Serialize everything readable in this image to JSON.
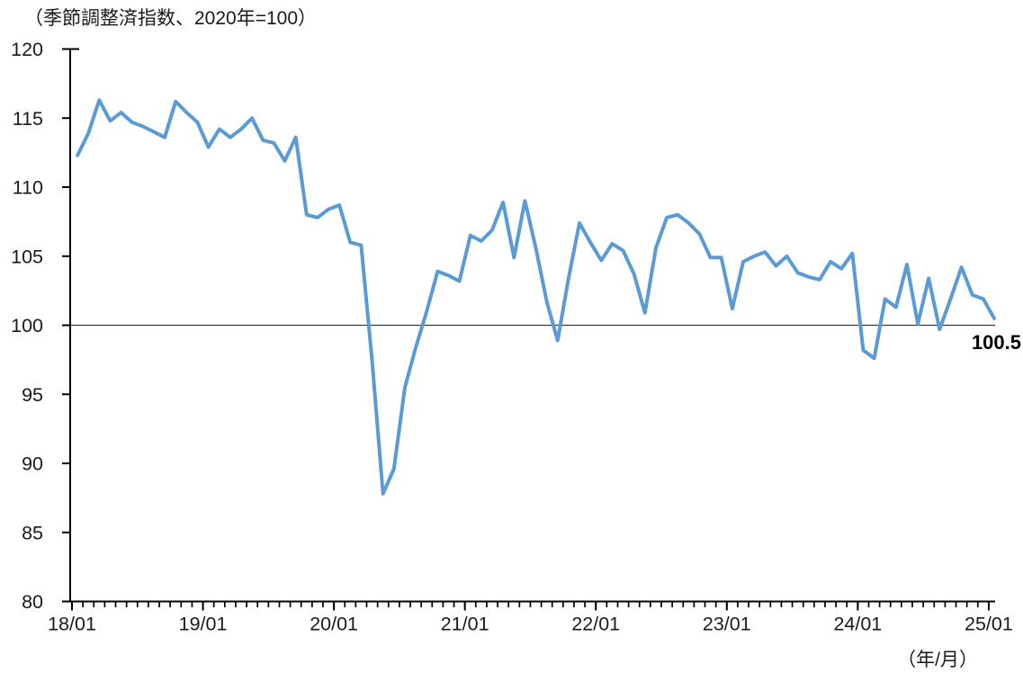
{
  "chart_data": {
    "type": "line",
    "title": "（季節調整済指数、2020年=100）",
    "x_axis_note": "（年/月）",
    "last_value_label": "100.5",
    "last_value": 100.5,
    "line_color": "#5B9BD5",
    "axis_color": "#000000",
    "reference_line_value": 100,
    "ylim": [
      80,
      120
    ],
    "y_ticks": [
      80,
      85,
      90,
      95,
      100,
      105,
      110,
      115,
      120
    ],
    "x_major_tick_labels": [
      "18/01",
      "19/01",
      "20/01",
      "21/01",
      "22/01",
      "23/01",
      "24/01",
      "25/01"
    ],
    "legend": "none",
    "grid": "off",
    "x": [
      "18/01",
      "18/02",
      "18/03",
      "18/04",
      "18/05",
      "18/06",
      "18/07",
      "18/08",
      "18/09",
      "18/10",
      "18/11",
      "18/12",
      "19/01",
      "19/02",
      "19/03",
      "19/04",
      "19/05",
      "19/06",
      "19/07",
      "19/08",
      "19/09",
      "19/10",
      "19/11",
      "19/12",
      "20/01",
      "20/02",
      "20/03",
      "20/04",
      "20/05",
      "20/06",
      "20/07",
      "20/08",
      "20/09",
      "20/10",
      "20/11",
      "20/12",
      "21/01",
      "21/02",
      "21/03",
      "21/04",
      "21/05",
      "21/06",
      "21/07",
      "21/08",
      "21/09",
      "21/10",
      "21/11",
      "21/12",
      "22/01",
      "22/02",
      "22/03",
      "22/04",
      "22/05",
      "22/06",
      "22/07",
      "22/08",
      "22/09",
      "22/10",
      "22/11",
      "22/12",
      "23/01",
      "23/02",
      "23/03",
      "23/04",
      "23/05",
      "23/06",
      "23/07",
      "23/08",
      "23/09",
      "23/10",
      "23/11",
      "23/12",
      "24/01",
      "24/02",
      "24/03",
      "24/04",
      "24/05",
      "24/06",
      "24/07",
      "24/08",
      "24/09",
      "24/10",
      "24/11",
      "24/12",
      "25/01"
    ],
    "values": [
      112.3,
      113.9,
      116.3,
      114.8,
      115.4,
      114.7,
      114.4,
      114.0,
      113.6,
      116.2,
      115.4,
      114.7,
      112.9,
      114.2,
      113.6,
      114.2,
      115.0,
      113.4,
      113.2,
      111.9,
      113.6,
      108.0,
      107.8,
      108.4,
      108.7,
      106.0,
      105.8,
      97.4,
      87.8,
      89.6,
      95.5,
      98.4,
      101.0,
      103.9,
      103.6,
      103.2,
      106.5,
      106.1,
      106.9,
      108.9,
      104.9,
      109.0,
      105.6,
      101.7,
      98.9,
      103.4,
      107.4,
      106.0,
      104.7,
      105.9,
      105.4,
      103.7,
      100.9,
      105.6,
      107.8,
      108.0,
      107.4,
      106.6,
      104.9,
      104.9,
      101.2,
      104.6,
      105.0,
      105.3,
      104.3,
      105.0,
      103.8,
      103.5,
      103.3,
      104.6,
      104.1,
      105.2,
      98.2,
      97.6,
      101.9,
      101.3,
      104.4,
      100.1,
      103.4,
      99.7,
      101.9,
      104.2,
      102.2,
      101.9,
      100.5
    ]
  }
}
